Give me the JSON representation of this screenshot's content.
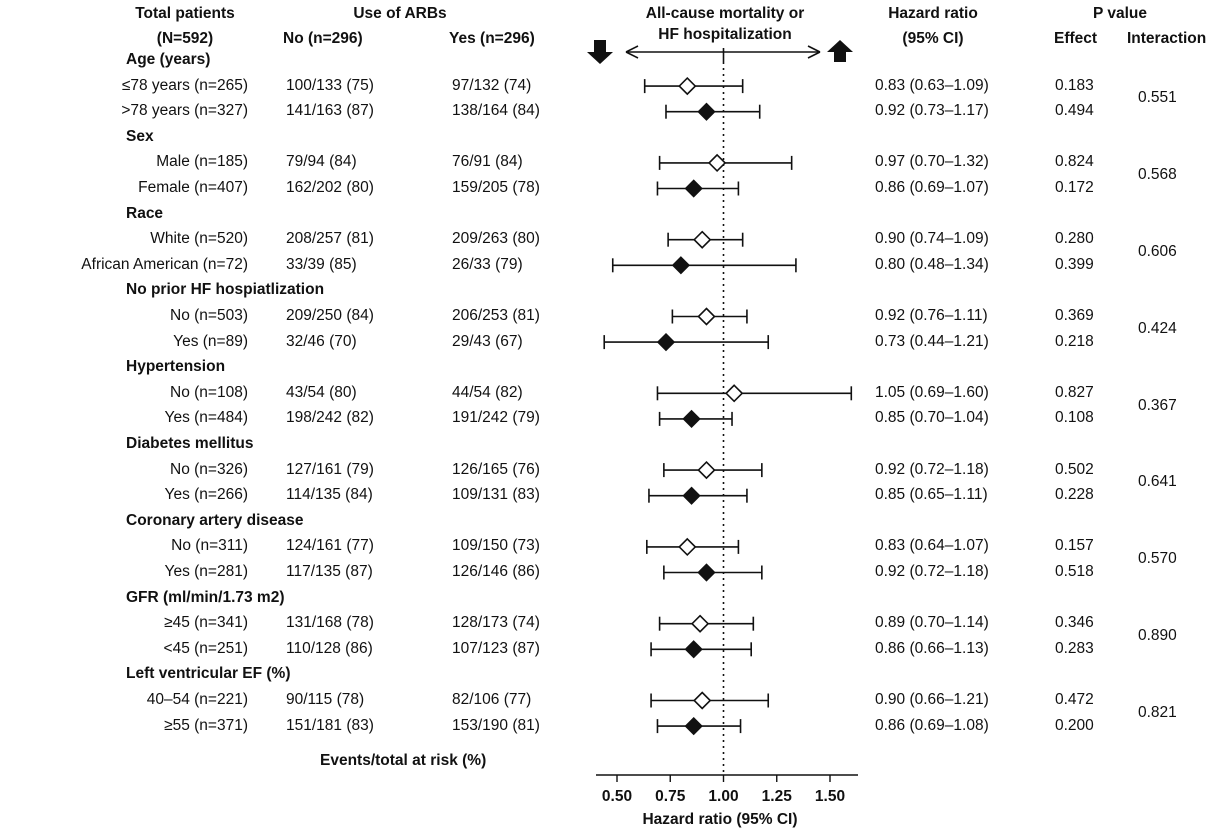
{
  "chart_data": {
    "type": "forest",
    "header": {
      "total_patients": "Total patients",
      "n_total": "(N=592)",
      "use_of_arbs": "Use of ARBs",
      "no_col": "No (n=296)",
      "yes_col": "Yes (n=296)",
      "outcome_line1": "All-cause mortality or",
      "outcome_line2": "HF hospitalization",
      "hr_line1": "Hazard ratio",
      "hr_line2": "(95% CI)",
      "p_value": "P value",
      "effect": "Effect",
      "interaction": "Interaction"
    },
    "groups": [
      {
        "title": "Age (years)",
        "p_interaction": "0.551",
        "rows": [
          {
            "label": "≤78 years (n=265)",
            "no_events": "100/133 (75)",
            "yes_events": "97/132 (74)",
            "hr": 0.83,
            "lo": 0.63,
            "hi": 1.09,
            "hr_text": "0.83 (0.63–1.09)",
            "p_effect": "0.183",
            "marker": "open"
          },
          {
            "label": ">78 years (n=327)",
            "no_events": "141/163 (87)",
            "yes_events": "138/164 (84)",
            "hr": 0.92,
            "lo": 0.73,
            "hi": 1.17,
            "hr_text": "0.92 (0.73–1.17)",
            "p_effect": "0.494",
            "marker": "filled"
          }
        ]
      },
      {
        "title": "Sex",
        "p_interaction": "0.568",
        "rows": [
          {
            "label": "Male (n=185)",
            "no_events": "79/94 (84)",
            "yes_events": "76/91 (84)",
            "hr": 0.97,
            "lo": 0.7,
            "hi": 1.32,
            "hr_text": "0.97 (0.70–1.32)",
            "p_effect": "0.824",
            "marker": "open"
          },
          {
            "label": "Female (n=407)",
            "no_events": "162/202 (80)",
            "yes_events": "159/205 (78)",
            "hr": 0.86,
            "lo": 0.69,
            "hi": 1.07,
            "hr_text": "0.86 (0.69–1.07)",
            "p_effect": "0.172",
            "marker": "filled"
          }
        ]
      },
      {
        "title": "Race",
        "p_interaction": "0.606",
        "rows": [
          {
            "label": "White (n=520)",
            "no_events": "208/257 (81)",
            "yes_events": "209/263 (80)",
            "hr": 0.9,
            "lo": 0.74,
            "hi": 1.09,
            "hr_text": "0.90 (0.74–1.09)",
            "p_effect": "0.280",
            "marker": "open"
          },
          {
            "label": "African American (n=72)",
            "no_events": "33/39 (85)",
            "yes_events": "26/33 (79)",
            "hr": 0.8,
            "lo": 0.48,
            "hi": 1.34,
            "hr_text": "0.80 (0.48–1.34)",
            "p_effect": "0.399",
            "marker": "filled"
          }
        ]
      },
      {
        "title": "No prior HF hospiatlization",
        "p_interaction": "0.424",
        "rows": [
          {
            "label": "No (n=503)",
            "no_events": "209/250 (84)",
            "yes_events": "206/253 (81)",
            "hr": 0.92,
            "lo": 0.76,
            "hi": 1.11,
            "hr_text": "0.92 (0.76–1.11)",
            "p_effect": "0.369",
            "marker": "open"
          },
          {
            "label": "Yes (n=89)",
            "no_events": "32/46 (70)",
            "yes_events": "29/43 (67)",
            "hr": 0.73,
            "lo": 0.44,
            "hi": 1.21,
            "hr_text": "0.73 (0.44–1.21)",
            "p_effect": "0.218",
            "marker": "filled"
          }
        ]
      },
      {
        "title": "Hypertension",
        "p_interaction": "0.367",
        "rows": [
          {
            "label": "No (n=108)",
            "no_events": "43/54 (80)",
            "yes_events": "44/54 (82)",
            "hr": 1.05,
            "lo": 0.69,
            "hi": 1.6,
            "hr_text": "1.05 (0.69–1.60)",
            "p_effect": "0.827",
            "marker": "open"
          },
          {
            "label": "Yes (n=484)",
            "no_events": "198/242 (82)",
            "yes_events": "191/242 (79)",
            "hr": 0.85,
            "lo": 0.7,
            "hi": 1.04,
            "hr_text": "0.85 (0.70–1.04)",
            "p_effect": "0.108",
            "marker": "filled"
          }
        ]
      },
      {
        "title": "Diabetes mellitus",
        "p_interaction": "0.641",
        "rows": [
          {
            "label": "No (n=326)",
            "no_events": "127/161 (79)",
            "yes_events": "126/165 (76)",
            "hr": 0.92,
            "lo": 0.72,
            "hi": 1.18,
            "hr_text": "0.92 (0.72–1.18)",
            "p_effect": "0.502",
            "marker": "open"
          },
          {
            "label": "Yes (n=266)",
            "no_events": "114/135 (84)",
            "yes_events": "109/131 (83)",
            "hr": 0.85,
            "lo": 0.65,
            "hi": 1.11,
            "hr_text": "0.85 (0.65–1.11)",
            "p_effect": "0.228",
            "marker": "filled"
          }
        ]
      },
      {
        "title": "Coronary artery disease",
        "p_interaction": "0.570",
        "rows": [
          {
            "label": "No (n=311)",
            "no_events": "124/161 (77)",
            "yes_events": "109/150 (73)",
            "hr": 0.83,
            "lo": 0.64,
            "hi": 1.07,
            "hr_text": "0.83 (0.64–1.07)",
            "p_effect": "0.157",
            "marker": "open"
          },
          {
            "label": "Yes (n=281)",
            "no_events": "117/135 (87)",
            "yes_events": "126/146 (86)",
            "hr": 0.92,
            "lo": 0.72,
            "hi": 1.18,
            "hr_text": "0.92 (0.72–1.18)",
            "p_effect": "0.518",
            "marker": "filled"
          }
        ]
      },
      {
        "title": "GFR (ml/min/1.73 m2)",
        "p_interaction": "0.890",
        "rows": [
          {
            "label": "≥45 (n=341)",
            "no_events": "131/168 (78)",
            "yes_events": "128/173 (74)",
            "hr": 0.89,
            "lo": 0.7,
            "hi": 1.14,
            "hr_text": "0.89 (0.70–1.14)",
            "p_effect": "0.346",
            "marker": "open"
          },
          {
            "label": "<45 (n=251)",
            "no_events": "110/128 (86)",
            "yes_events": "107/123 (87)",
            "hr": 0.86,
            "lo": 0.66,
            "hi": 1.13,
            "hr_text": "0.86 (0.66–1.13)",
            "p_effect": "0.283",
            "marker": "filled"
          }
        ]
      },
      {
        "title": "Left ventricular EF (%)",
        "p_interaction": "0.821",
        "rows": [
          {
            "label": "40–54 (n=221)",
            "no_events": "90/115 (78)",
            "yes_events": "82/106 (77)",
            "hr": 0.9,
            "lo": 0.66,
            "hi": 1.21,
            "hr_text": "0.90 (0.66–1.21)",
            "p_effect": "0.472",
            "marker": "open"
          },
          {
            "label": "≥55 (n=371)",
            "no_events": "151/181 (83)",
            "yes_events": "153/190 (81)",
            "hr": 0.86,
            "lo": 0.69,
            "hi": 1.08,
            "hr_text": "0.86 (0.69–1.08)",
            "p_effect": "0.200",
            "marker": "filled"
          }
        ]
      }
    ],
    "footer_label": "Events/total at risk (%)",
    "xlabel": "Hazard ratio (95% CI)",
    "xlim": [
      0.4,
      1.65
    ],
    "xticks": [
      "0.50",
      "0.75",
      "1.00",
      "1.25",
      "1.50"
    ],
    "reference_line": 1.0,
    "reference_line_style": "dotted",
    "direction_arrows": {
      "left": "down-arrow",
      "right": "up-arrow"
    },
    "colors": {
      "ink": "#111111",
      "open_marker_fill": "#ffffff",
      "filled_marker_fill": "#111111"
    }
  }
}
